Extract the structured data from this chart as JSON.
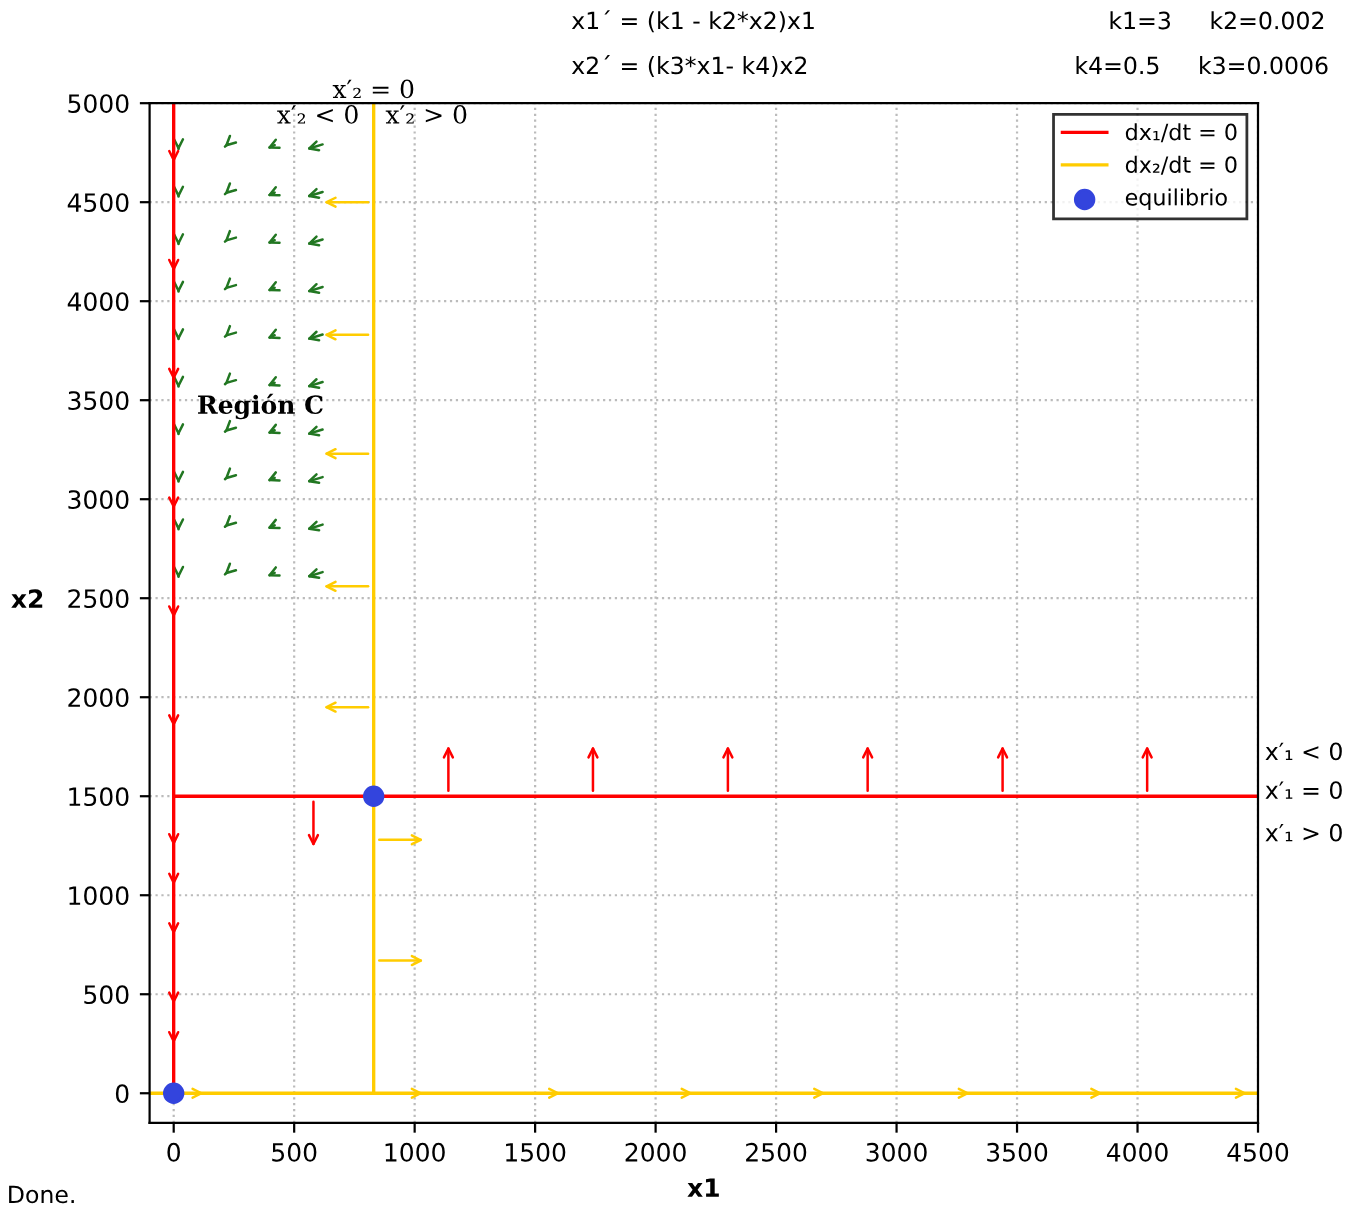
{
  "chart_data": {
    "type": "line",
    "xlabel": "x1",
    "ylabel": "x2",
    "xlim": [
      -100,
      4500
    ],
    "ylim": [
      -150,
      5000
    ],
    "xticks": [
      0,
      500,
      1000,
      1500,
      2000,
      2500,
      3000,
      3500,
      4000,
      4500
    ],
    "yticks": [
      0,
      500,
      1000,
      1500,
      2000,
      2500,
      3000,
      3500,
      4000,
      4500,
      5000
    ],
    "grid": true,
    "legend": "top right",
    "series": [
      {
        "name": "dx₁/dt = 0",
        "type": "line",
        "color": "#ff0000",
        "x": [
          0,
          0,
          0,
          4500
        ],
        "values": [
          5000,
          0,
          1500,
          1500
        ]
      },
      {
        "name": "dx₂/dt = 0",
        "type": "line",
        "color": "#ffcc00",
        "x": [
          830,
          830,
          -100,
          4500
        ],
        "values": [
          5000,
          0,
          0,
          0
        ]
      },
      {
        "name": "equilibrio",
        "type": "scatter",
        "marker": "circle",
        "color": "#3344dd",
        "x": [
          0,
          830
        ],
        "values": [
          0,
          1500
        ]
      }
    ],
    "annotations": [
      "x1´ = (k1 - k2*x2)x1",
      "x2´ = (k3*x1- k4)x2",
      "k1=3     k2=0.002",
      "k4=0.5     k3=0.0006",
      "x′₁ < 0",
      "x′₁ = 0",
      "x′₁ > 0",
      "Done.",
      "x′₂ < 0",
      "x′₂ > 0",
      "Región C",
      {
        "text": "x′₂ = 0",
        "x": 830,
        "y": 5000
      }
    ]
  }
}
